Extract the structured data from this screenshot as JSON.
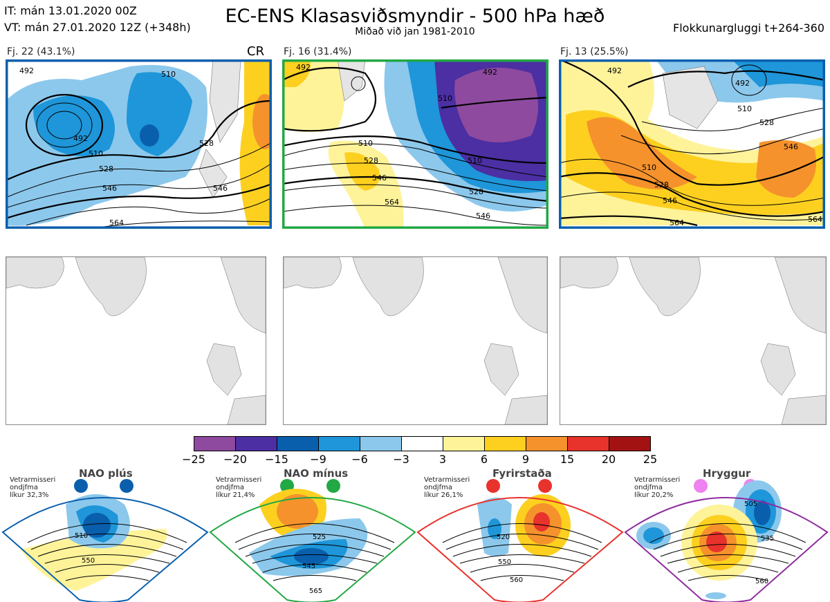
{
  "header": {
    "it_line": "IT: mán 13.01.2020 00Z",
    "vt_line": "VT: mán 27.01.2020 12Z  (+348h)",
    "title": "EC-ENS Klasasviðsmyndir - 500 hPa hæð",
    "subtitle": "Miðað við jan 1981-2010",
    "window_label": "Flokkunargluggi t+264-360"
  },
  "clusters": [
    {
      "label": "Fj. 22 (43.1%)",
      "marker": "CR",
      "frame_color": "#0a5fad",
      "contour_labels": [
        "492",
        "510",
        "528",
        "546",
        "564",
        "492",
        "510",
        "528",
        "546"
      ]
    },
    {
      "label": "Fj. 16 (31.4%)",
      "marker": "",
      "frame_color": "#22a844",
      "contour_labels": [
        "492",
        "492",
        "510",
        "528",
        "546",
        "564",
        "510",
        "528",
        "546",
        "510"
      ]
    },
    {
      "label": "Fj. 13 (25.5%)",
      "marker": "",
      "frame_color": "#0a5fad",
      "contour_labels": [
        "492",
        "492",
        "510",
        "528",
        "546",
        "564",
        "510",
        "528",
        "546",
        "564"
      ]
    }
  ],
  "colorbar": {
    "colors": [
      "#8e4a9e",
      "#4b2fa3",
      "#0a5fad",
      "#1e96d9",
      "#8cc8ec",
      "#ffffff",
      "#fff39a",
      "#fdd020",
      "#f5922c",
      "#e8322c",
      "#a31212"
    ],
    "ticks": [
      "−25",
      "−20",
      "−15",
      "−9",
      "−6",
      "−3",
      "3",
      "6",
      "9",
      "15",
      "20",
      "25"
    ]
  },
  "regimes": [
    {
      "name": "NAO plús",
      "info_line1": "Vetrarmisseri",
      "info_line2": "ondjfma",
      "info_line3": "líkur 32,3%",
      "color": "#0a5fad",
      "contour_labels": [
        "510",
        "550"
      ]
    },
    {
      "name": "NAO mínus",
      "info_line1": "Vetrarmisseri",
      "info_line2": "ondjfma",
      "info_line3": "líkur 21,4%",
      "color": "#22a844",
      "contour_labels": [
        "525",
        "545",
        "565"
      ]
    },
    {
      "name": "Fyrirstaða",
      "info_line1": "Vetrarmisseri",
      "info_line2": "ondjfma",
      "info_line3": "líkur 26,1%",
      "color": "#e8322c",
      "contour_labels": [
        "520",
        "550",
        "560"
      ]
    },
    {
      "name": "Hryggur",
      "info_line1": "Vetrarmisseri",
      "info_line2": "ondjfma",
      "info_line3": "líkur 20,2%",
      "color": "#ee82ee",
      "contour_labels": [
        "505",
        "535",
        "560"
      ]
    }
  ]
}
